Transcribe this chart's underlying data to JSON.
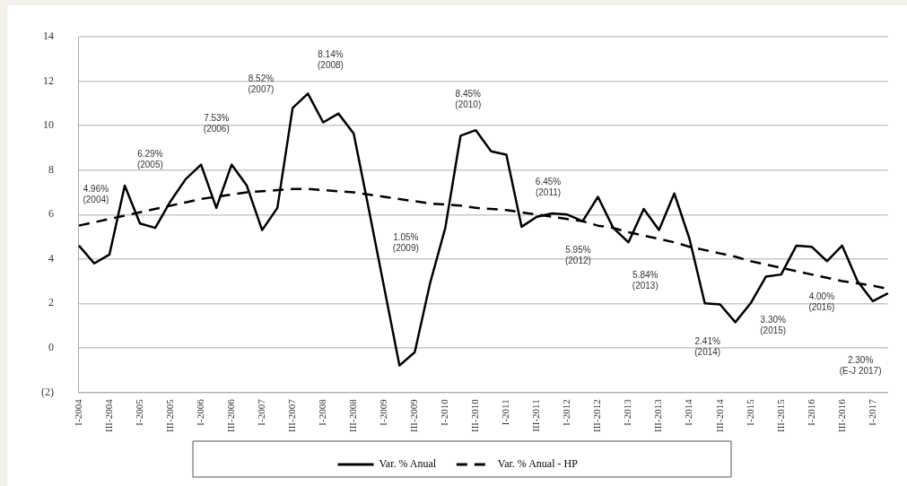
{
  "chart_data": {
    "type": "line",
    "categories": [
      "I-2004",
      null,
      "III-2004",
      null,
      "I-2005",
      null,
      "III-2005",
      null,
      "I-2006",
      null,
      "III-2006",
      null,
      "I-2007",
      null,
      "III-2007",
      null,
      "I-2008",
      null,
      "III-2008",
      null,
      "I-2009",
      null,
      "III-2009",
      null,
      "I-2010",
      null,
      "III-2010",
      null,
      "I-2011",
      null,
      "III-2011",
      null,
      "I-2012",
      null,
      "III-2012",
      null,
      "I-2013",
      null,
      "III-2013",
      null,
      "I-2014",
      null,
      "III-2014",
      null,
      "I-2015",
      null,
      "III-2015",
      null,
      "I-2016",
      null,
      "III-2016",
      null,
      "I-2017",
      null
    ],
    "series": [
      {
        "name": "Var. % Anual",
        "color": "#000000",
        "line_style": "solid",
        "values": [
          4.6,
          3.8,
          4.2,
          7.3,
          5.6,
          5.4,
          6.6,
          7.6,
          8.25,
          6.3,
          8.25,
          7.3,
          5.3,
          6.3,
          10.8,
          11.45,
          10.15,
          10.55,
          9.65,
          6.2,
          2.7,
          -0.8,
          -0.2,
          2.9,
          5.4,
          9.55,
          9.8,
          8.85,
          8.7,
          5.45,
          5.9,
          6.05,
          6.0,
          5.7,
          6.8,
          5.4,
          4.75,
          6.25,
          5.3,
          6.95,
          4.9,
          2.0,
          1.95,
          1.15,
          2.0,
          3.2,
          3.3,
          4.6,
          4.55,
          3.9,
          4.6,
          3.0,
          2.1,
          2.45
        ]
      },
      {
        "name": "Var. % Anual - HP",
        "color": "#000000",
        "line_style": "dashed",
        "values": [
          5.5,
          5.65,
          5.8,
          5.95,
          6.1,
          6.25,
          6.4,
          6.55,
          6.7,
          6.8,
          6.9,
          7.0,
          7.05,
          7.1,
          7.15,
          7.15,
          7.1,
          7.05,
          7.0,
          6.9,
          6.8,
          6.7,
          6.6,
          6.5,
          6.45,
          6.4,
          6.3,
          6.25,
          6.2,
          6.1,
          6.0,
          5.9,
          5.8,
          5.7,
          5.5,
          5.4,
          5.2,
          5.05,
          4.9,
          4.75,
          4.55,
          4.4,
          4.25,
          4.1,
          3.9,
          3.75,
          3.6,
          3.45,
          3.3,
          3.15,
          3.0,
          2.9,
          2.8,
          2.65
        ]
      }
    ],
    "ylim": [
      -2,
      14
    ],
    "yticks": [
      {
        "value": -2,
        "label": "(2)"
      },
      0,
      2,
      4,
      6,
      8,
      10,
      12,
      14
    ],
    "grid": "y",
    "legend": "bottom",
    "marker": "none",
    "annotations": [
      "4.96%\n(2004)",
      "6.29%\n(2005)",
      "7.53%\n(2006)",
      "8.52%\n(2007)",
      "8.14%\n(2008)",
      "1.05%\n(2009)",
      "8.45%\n(2010)",
      "6.45%\n(2011)",
      "5.95%\n(2012)",
      "5.84%\n(2013)",
      "2.41%\n(2014)",
      "3.30%\n(2015)",
      "4.00%\n(2016)",
      "2.30%\n(E-J 2017)"
    ]
  }
}
